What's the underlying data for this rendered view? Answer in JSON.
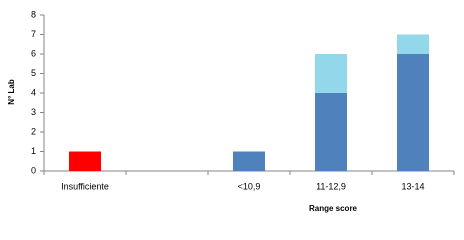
{
  "chart_data": {
    "type": "stacked_bar",
    "x_label": "Range score",
    "y_label": "N° Lab",
    "categories": [
      "Insufficiente",
      null,
      "<10,9",
      "11-12,9",
      "13-14"
    ],
    "series": [
      {
        "colors": [
          "#ff0000",
          null,
          "#4f81bd",
          "#4f81bd",
          "#4f81bd"
        ],
        "values": [
          1,
          null,
          1,
          4,
          6
        ]
      },
      {
        "colors": [
          "#93d8ea",
          null,
          "#93d8ea",
          "#93d8ea",
          "#93d8ea"
        ],
        "values": [
          0,
          null,
          0,
          2,
          1
        ]
      }
    ],
    "ylim": [
      0,
      8
    ],
    "yticks": [
      0,
      1,
      2,
      3,
      4,
      5,
      6,
      7,
      8
    ],
    "grid": false
  }
}
